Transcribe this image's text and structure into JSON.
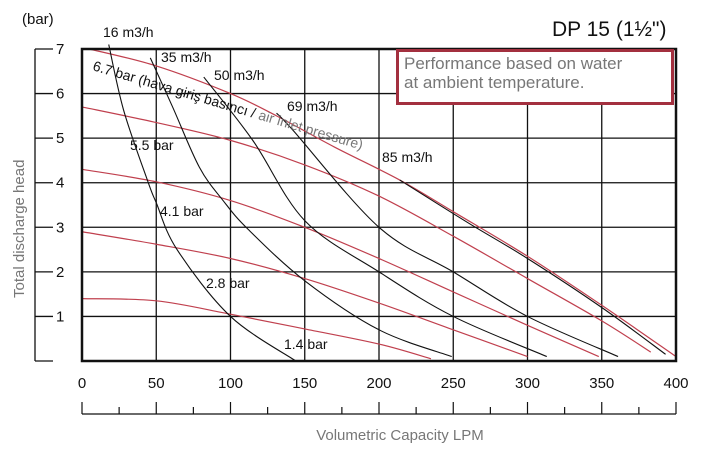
{
  "chart_data": {
    "type": "line",
    "title": "DP 15 (1½\")",
    "note": [
      "Performance based on water",
      "at ambient temperature."
    ],
    "xlabel": "Volumetric Capacity LPM",
    "ylabel": "Total discharge head",
    "yunit": "(bar)",
    "xlim": [
      0,
      400
    ],
    "ylim": [
      0,
      7
    ],
    "xticks": [
      "0",
      "50",
      "100",
      "150",
      "200",
      "250",
      "300",
      "350",
      "400"
    ],
    "yticks": [
      "1",
      "2",
      "3",
      "4",
      "5",
      "6",
      "7"
    ],
    "grid": true,
    "air_pressure_label": [
      "6.7 bar (hava giriş basıncı / ",
      "air inlet pressure)"
    ],
    "colors": {
      "pressure": "#c0404e",
      "flow": "#111111",
      "note_border": "#a3303f",
      "label_grey": "#777777"
    },
    "pressure_series": [
      {
        "name": "1.4 bar",
        "points": [
          [
            0,
            1.4
          ],
          [
            50,
            1.35
          ],
          [
            100,
            1.05
          ],
          [
            150,
            0.72
          ],
          [
            200,
            0.38
          ],
          [
            235,
            0.05
          ]
        ]
      },
      {
        "name": "2.8 bar",
        "points": [
          [
            0,
            2.9
          ],
          [
            50,
            2.62
          ],
          [
            100,
            2.3
          ],
          [
            150,
            1.85
          ],
          [
            200,
            1.3
          ],
          [
            250,
            0.7
          ],
          [
            300,
            0.1
          ]
        ]
      },
      {
        "name": "4.1 bar",
        "points": [
          [
            0,
            4.3
          ],
          [
            50,
            4.02
          ],
          [
            100,
            3.6
          ],
          [
            150,
            3.0
          ],
          [
            200,
            2.3
          ],
          [
            250,
            1.55
          ],
          [
            300,
            0.8
          ],
          [
            348,
            0.1
          ]
        ]
      },
      {
        "name": "5.5 bar",
        "points": [
          [
            0,
            5.7
          ],
          [
            50,
            5.35
          ],
          [
            100,
            4.95
          ],
          [
            150,
            4.4
          ],
          [
            200,
            3.7
          ],
          [
            250,
            2.8
          ],
          [
            300,
            1.85
          ],
          [
            350,
            0.9
          ],
          [
            383,
            0.2
          ]
        ]
      },
      {
        "name": "6.7 bar",
        "points": [
          [
            5,
            7.0
          ],
          [
            50,
            6.62
          ],
          [
            100,
            6.0
          ],
          [
            131,
            5.5
          ],
          [
            170,
            4.8
          ],
          [
            214,
            4.06
          ],
          [
            250,
            3.35
          ],
          [
            300,
            2.35
          ],
          [
            350,
            1.25
          ],
          [
            400,
            0.1
          ]
        ]
      }
    ],
    "flow_series": [
      {
        "name": "16 m3/h",
        "points": [
          [
            18,
            7.1
          ],
          [
            28,
            5.63
          ],
          [
            44,
            4.06
          ],
          [
            50,
            3.55
          ],
          [
            64,
            2.5
          ],
          [
            100,
            1.0
          ],
          [
            144,
            0.0
          ]
        ]
      },
      {
        "name": "35 m3/h",
        "points": [
          [
            46,
            6.8
          ],
          [
            61,
            5.7
          ],
          [
            79,
            4.35
          ],
          [
            95,
            3.6
          ],
          [
            112,
            2.95
          ],
          [
            150,
            1.8
          ],
          [
            200,
            0.7
          ],
          [
            249,
            0.1
          ]
        ]
      },
      {
        "name": "50 m3/h",
        "points": [
          [
            82,
            6.37
          ],
          [
            115,
            4.95
          ],
          [
            150,
            3.15
          ],
          [
            200,
            2.0
          ],
          [
            250,
            1.0
          ],
          [
            313,
            0.1
          ]
        ]
      },
      {
        "name": "69 m3/h",
        "points": [
          [
            131,
            5.56
          ],
          [
            142,
            5.18
          ],
          [
            200,
            3.0
          ],
          [
            250,
            2.0
          ],
          [
            300,
            1.0
          ],
          [
            361,
            0.1
          ]
        ]
      },
      {
        "name": "85 m3/h",
        "points": [
          [
            214,
            4.06
          ],
          [
            260,
            3.1
          ],
          [
            300,
            2.3
          ],
          [
            350,
            1.2
          ],
          [
            393,
            0.15
          ]
        ]
      }
    ]
  }
}
